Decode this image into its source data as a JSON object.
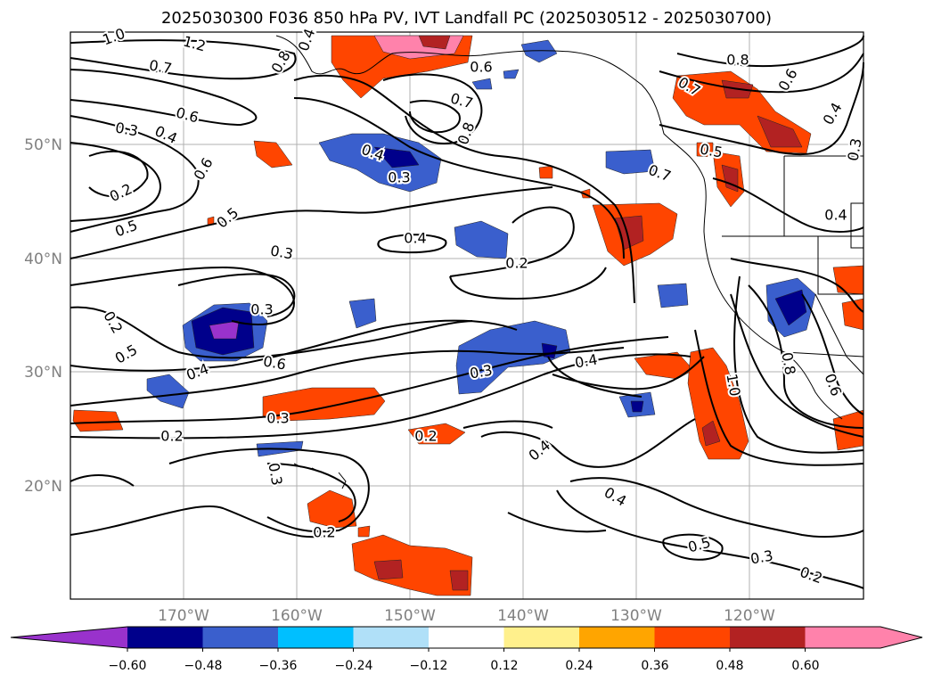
{
  "title": "2025030300 F036 850 hPa PV, IVT Landfall PC (2025030512 - 2025030700)",
  "map": {
    "lat_labels": [
      "50°N",
      "40°N",
      "30°N",
      "20°N"
    ],
    "lon_labels": [
      "170°W",
      "160°W",
      "150°W",
      "140°W",
      "130°W",
      "120°W"
    ],
    "contour_labels": [
      "1.0",
      "1.2",
      "0.7",
      "0.8",
      "0.4",
      "0.6",
      "0.6",
      "0.3",
      "0.4",
      "0.6",
      "0.2",
      "0.5",
      "0.5",
      "0.4",
      "0.3",
      "0.7",
      "0.8",
      "0.4",
      "0.3",
      "0.2",
      "0.3",
      "0.2",
      "0.5",
      "0.4",
      "0.6",
      "0.3",
      "0.4",
      "0.3",
      "0.2",
      "0.2",
      "0.3",
      "0.4",
      "0.4",
      "0.5",
      "0.3",
      "0.2",
      "0.2",
      "0.8",
      "0.7",
      "0.6",
      "0.4",
      "0.3",
      "0.5",
      "0.7",
      "0.4",
      "1.0",
      "0.8",
      "0.6"
    ]
  },
  "colorbar": {
    "tick_labels": [
      "−0.60",
      "−0.48",
      "−0.36",
      "−0.24",
      "−0.12",
      "0.12",
      "0.24",
      "0.36",
      "0.48",
      "0.60"
    ],
    "colors": [
      "#9932cc",
      "#00008b",
      "#3a5fcd",
      "#00bfff",
      "#b0e0f8",
      "#ffffff",
      "#fff08c",
      "#ffa500",
      "#ff4500",
      "#b22222",
      "#ff82ab",
      "#ff82ab"
    ]
  }
}
